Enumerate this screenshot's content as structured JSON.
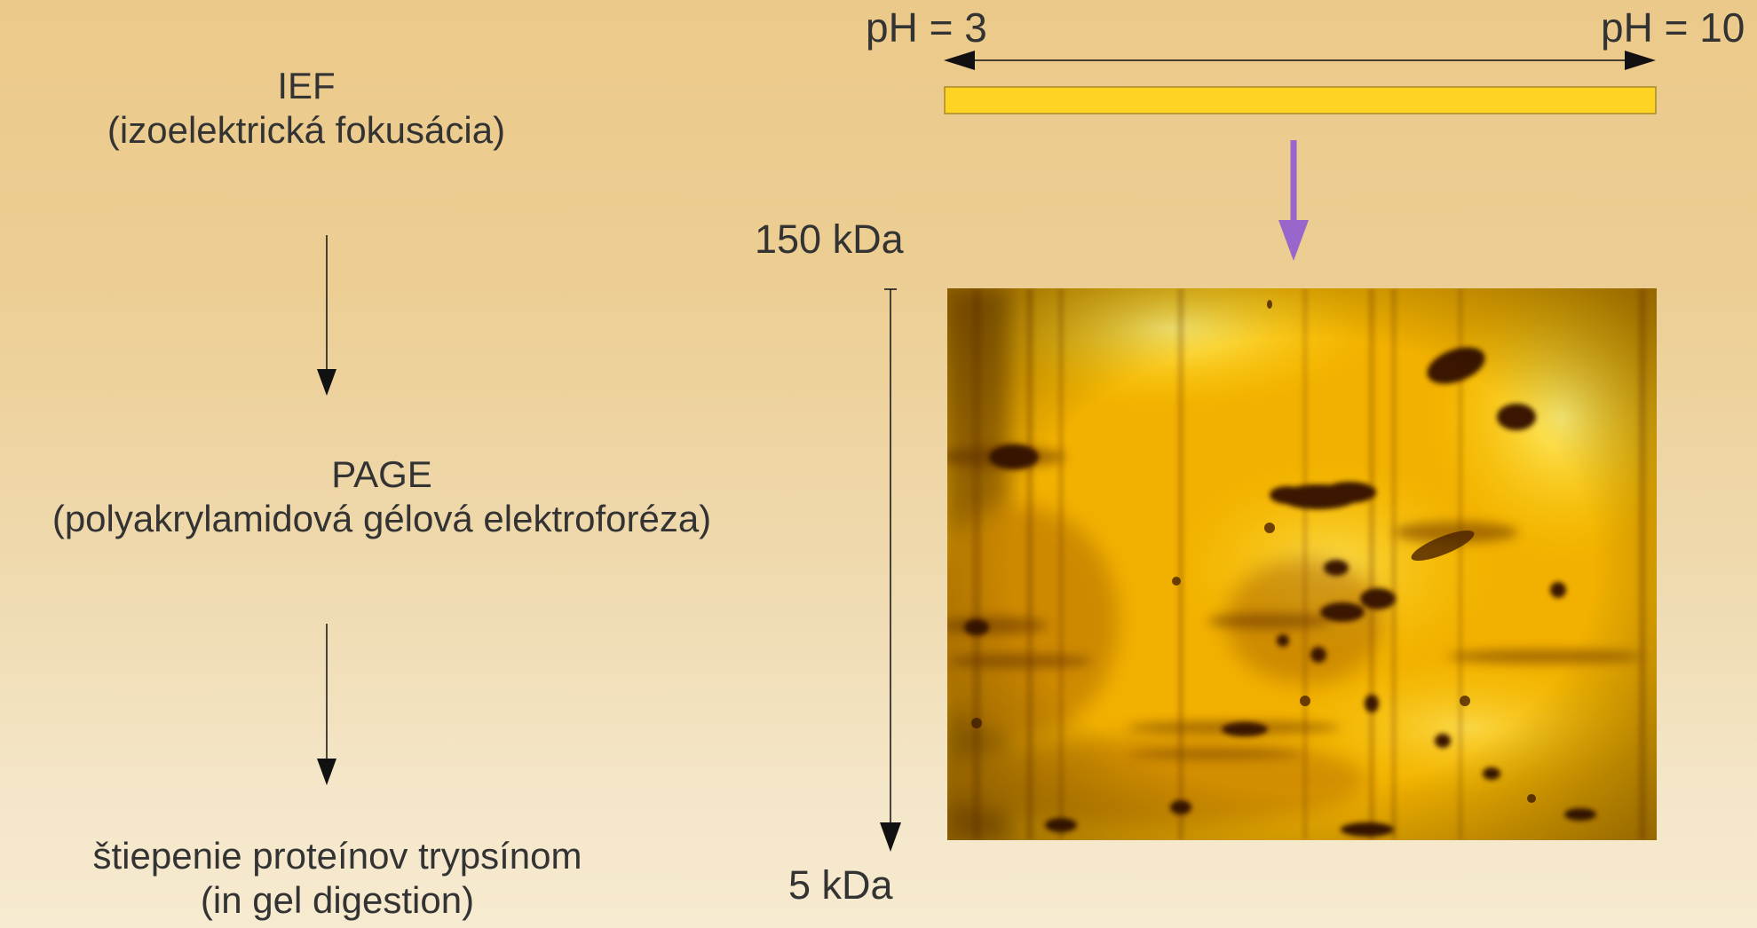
{
  "steps": [
    {
      "title": "IEF",
      "subtitle": "(izoelektrická fokusácia)"
    },
    {
      "title": "PAGE",
      "subtitle": "(polyakrylamidová gélová elektroforéza)"
    },
    {
      "title": "štiepenie proteínov trypsínom",
      "subtitle": "(in gel digestion)"
    }
  ],
  "ph_axis": {
    "left_label": "pH = 3",
    "right_label": "pH = 10"
  },
  "mass_axis": {
    "top_label": "150 kDa",
    "bottom_label": "5 kDa"
  },
  "colors": {
    "ief_strip": "#ffd324",
    "transfer_arrow": "#9966cc",
    "gel_base": "#f2b100"
  }
}
